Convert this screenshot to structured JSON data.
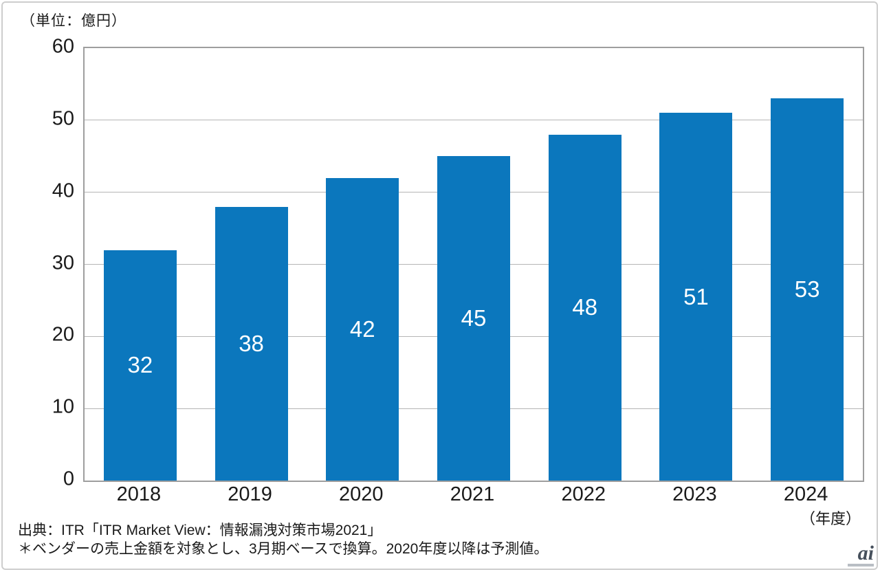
{
  "chart_data": {
    "type": "bar",
    "title": "",
    "unit_label": "（単位：億円）",
    "categories": [
      "2018",
      "2019",
      "2020",
      "2021",
      "2022",
      "2023",
      "2024"
    ],
    "values": [
      32,
      38,
      42,
      45,
      48,
      51,
      53
    ],
    "xlabel": "（年度）",
    "ylabel": "",
    "ylim": [
      0,
      60
    ],
    "yticks": [
      0,
      10,
      20,
      30,
      40,
      50,
      60
    ],
    "grid": true,
    "legend": "none",
    "bar_color": "#0b77bd",
    "bar_label_color": "#ffffff"
  },
  "footer": {
    "source_line": "出典：ITR「ITR Market View：情報漏洩対策市場2021」",
    "note_line": "＊ベンダーの売上金額を対象とし、3月期ベースで換算。2020年度以降は予測値。"
  },
  "watermark": {
    "text": "ai"
  }
}
